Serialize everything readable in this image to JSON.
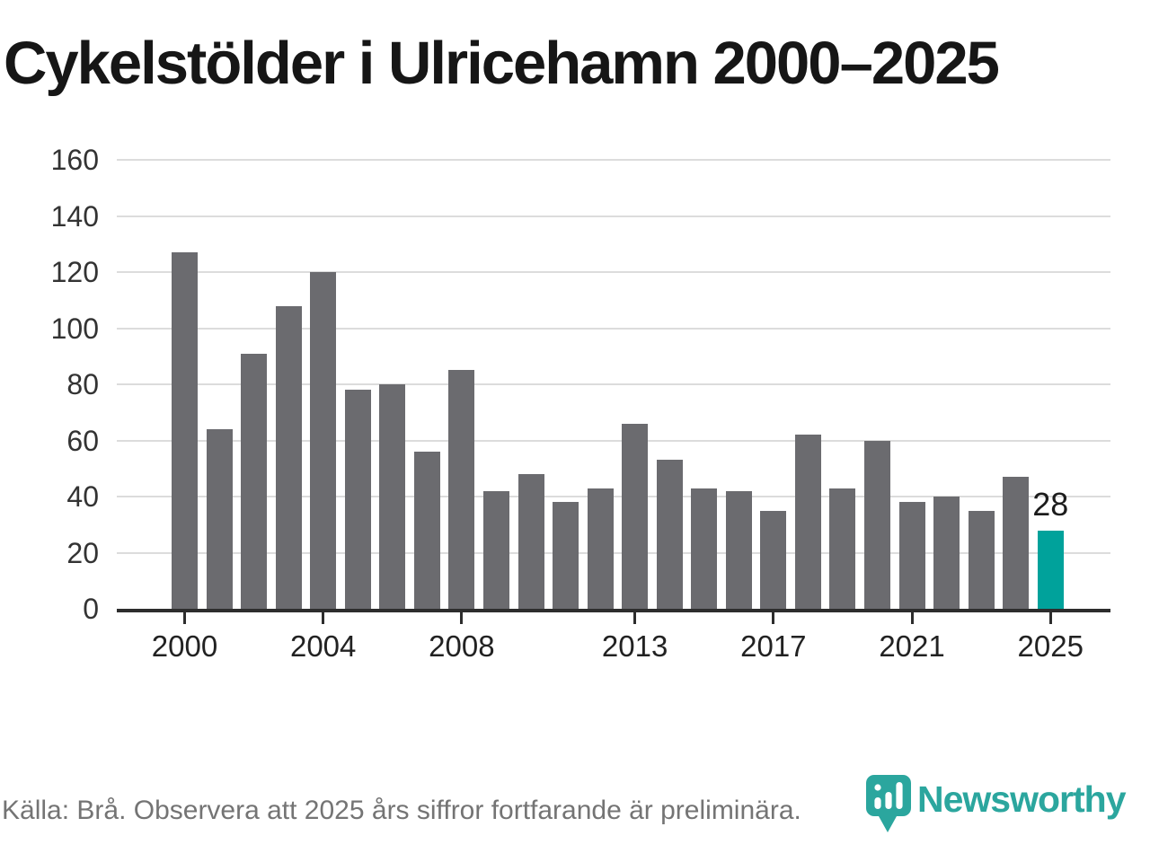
{
  "header": {
    "title": "Cykelstölder i Ulricehamn 2000–2025"
  },
  "chart_data": {
    "type": "bar",
    "title": "Cykelstölder i Ulricehamn 2000–2025",
    "categories": [
      "2000",
      "2001",
      "2002",
      "2003",
      "2004",
      "2005",
      "2006",
      "2007",
      "2008",
      "2009",
      "2010",
      "2011",
      "2012",
      "2013",
      "2014",
      "2015",
      "2016",
      "2017",
      "2018",
      "2019",
      "2020",
      "2021",
      "2022",
      "2023",
      "2024",
      "2025"
    ],
    "values": [
      127,
      64,
      91,
      108,
      120,
      78,
      80,
      56,
      85,
      42,
      48,
      38,
      43,
      66,
      53,
      43,
      42,
      35,
      62,
      43,
      60,
      38,
      40,
      35,
      47,
      28
    ],
    "bar_color": "#6b6b6f",
    "highlight": {
      "index": 25,
      "value_label": "28",
      "color": "#00a29b"
    },
    "ylim": [
      0,
      160
    ],
    "yticks": [
      0,
      20,
      40,
      60,
      80,
      100,
      120,
      140,
      160
    ],
    "xticks": [
      {
        "index": 0,
        "label": "2000"
      },
      {
        "index": 4,
        "label": "2004"
      },
      {
        "index": 8,
        "label": "2008"
      },
      {
        "index": 13,
        "label": "2013"
      },
      {
        "index": 17,
        "label": "2017"
      },
      {
        "index": 21,
        "label": "2021"
      },
      {
        "index": 25,
        "label": "2025"
      }
    ],
    "grid": true,
    "legend_position": "none",
    "axis_color": "#2d2d2d",
    "grid_color": "#dcdcdc"
  },
  "footer": {
    "source_note": "Källa: Brå. Observera att 2025 års siffror fortfarande är preliminära."
  },
  "branding": {
    "logo_text": "Newsworthy",
    "logo_color": "#2ba69e"
  }
}
